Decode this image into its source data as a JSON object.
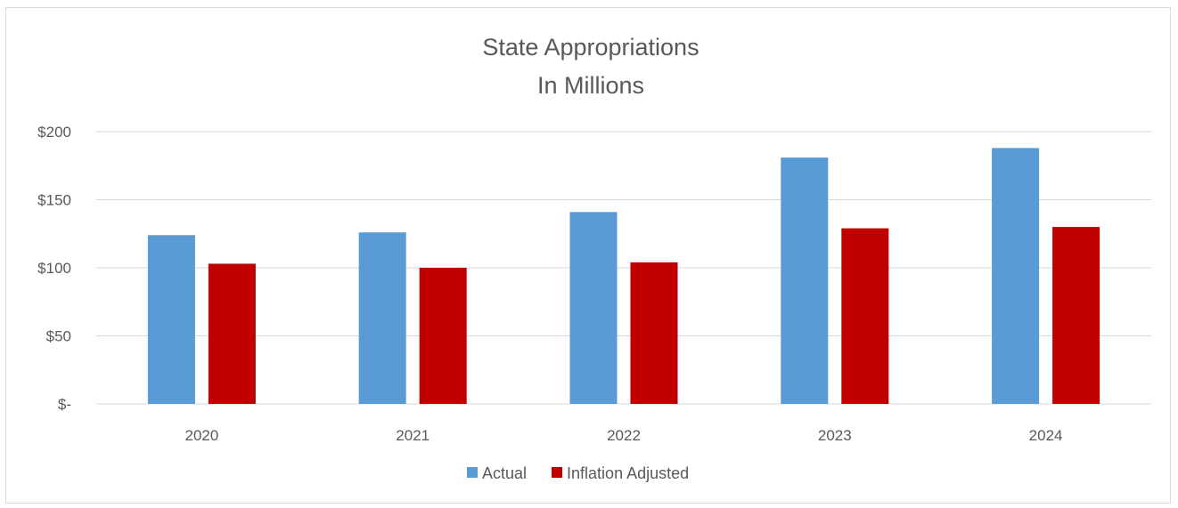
{
  "chart_data": {
    "type": "bar",
    "title": "State Appropriations",
    "subtitle": "In Millions",
    "categories": [
      "2020",
      "2021",
      "2022",
      "2023",
      "2024"
    ],
    "series": [
      {
        "name": "Actual",
        "color": "#5b9bd5",
        "values": [
          124,
          126,
          141,
          181,
          188
        ]
      },
      {
        "name": "Inflation Adjusted",
        "color": "#c00000",
        "values": [
          103,
          100,
          104,
          129,
          130
        ]
      }
    ],
    "ylim": [
      0,
      200
    ],
    "yticks": [
      0,
      50,
      100,
      150,
      200
    ],
    "ytick_labels": [
      "$-",
      "$50",
      "$100",
      "$150",
      "$200"
    ],
    "grid": true,
    "legend_position": "bottom"
  }
}
